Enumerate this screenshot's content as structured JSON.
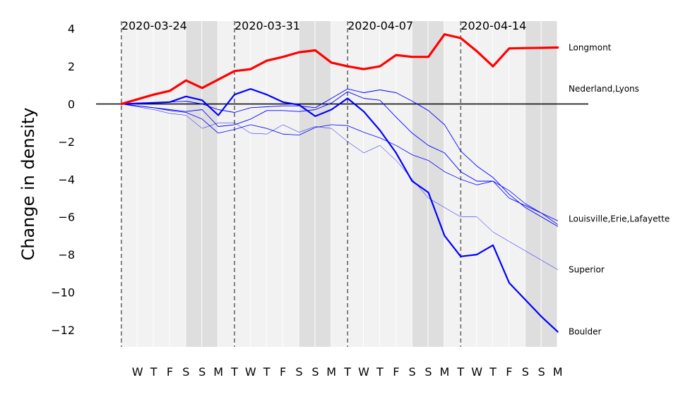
{
  "chart_data": {
    "type": "line",
    "title": "",
    "xlabel": "",
    "ylabel": "Change in density",
    "ylim": [
      -13,
      4.5
    ],
    "yticks": [
      4,
      2,
      0,
      -2,
      -4,
      -6,
      -8,
      -10,
      -12
    ],
    "ytick_labels": [
      "4",
      "2",
      "0",
      "−2",
      "−4",
      "−6",
      "−8",
      "−10",
      "−12"
    ],
    "xlim": [
      "2020-03-23T20:00",
      "2020-04-20T12:00"
    ],
    "day_labels": [
      "W",
      "T",
      "F",
      "S",
      "S",
      "M",
      "T",
      "W",
      "T",
      "F",
      "S",
      "S",
      "M",
      "T",
      "W",
      "T",
      "F",
      "S",
      "S",
      "M",
      "T",
      "W",
      "T",
      "F",
      "S",
      "S",
      "M"
    ],
    "first_day": "2020-03-25",
    "weekend_days": [
      "2020-03-28",
      "2020-03-29",
      "2020-04-04",
      "2020-04-05",
      "2020-04-11",
      "2020-04-12",
      "2020-04-18",
      "2020-04-19"
    ],
    "week_markers": [
      {
        "date": "2020-03-24",
        "label": "2020-03-24"
      },
      {
        "date": "2020-03-31",
        "label": "2020-03-31"
      },
      {
        "date": "2020-04-07",
        "label": "2020-04-07"
      },
      {
        "date": "2020-04-14",
        "label": "2020-04-14"
      }
    ],
    "zero_line": true,
    "x_dates": [
      "2020-03-24",
      "2020-03-25",
      "2020-03-26",
      "2020-03-27",
      "2020-03-28",
      "2020-03-29",
      "2020-03-30",
      "2020-03-31",
      "2020-04-01",
      "2020-04-02",
      "2020-04-03",
      "2020-04-04",
      "2020-04-05",
      "2020-04-06",
      "2020-04-07",
      "2020-04-08",
      "2020-04-09",
      "2020-04-10",
      "2020-04-11",
      "2020-04-12",
      "2020-04-13",
      "2020-04-14",
      "2020-04-15",
      "2020-04-16",
      "2020-04-17",
      "2020-04-18",
      "2020-04-19",
      "2020-04-20"
    ],
    "series": [
      {
        "name": "Longmont",
        "color": "#ff0000",
        "width": 3.2,
        "values": [
          0,
          0.25,
          0.5,
          0.7,
          1.25,
          0.85,
          1.3,
          1.75,
          1.85,
          2.3,
          2.5,
          2.75,
          2.85,
          2.2,
          2.0,
          1.85,
          2.0,
          2.6,
          2.5,
          2.5,
          3.7,
          3.5,
          2.8,
          2.0,
          2.95,
          2.97,
          2.98,
          3.0
        ]
      },
      {
        "name": "Nederland,Lyons",
        "color": "#0000ff",
        "width": 0.9,
        "values": [
          0,
          0.02,
          0.05,
          0.1,
          0.15,
          0.0,
          -0.3,
          -0.45,
          -0.2,
          -0.15,
          -0.1,
          -0.1,
          -0.2,
          0.3,
          0.8,
          0.6,
          0.75,
          0.6,
          0.15,
          -0.35,
          -1.1,
          -2.5,
          -3.3,
          -3.9,
          -4.8,
          -5.5,
          -6.0,
          -6.5
        ]
      },
      {
        "name": "Louisville,Erie,Lafayette",
        "color": "#0000ff",
        "width": 0.9,
        "values": [
          0,
          -0.1,
          -0.2,
          -0.3,
          -0.4,
          -0.3,
          -1.2,
          -1.1,
          -0.8,
          -0.35,
          -0.35,
          -0.4,
          -0.3,
          0.05,
          0.65,
          0.3,
          0.2,
          -0.7,
          -1.55,
          -2.2,
          -2.6,
          -3.6,
          -4.1,
          -4.1,
          -5.0,
          -5.4,
          -5.8,
          -6.2
        ]
      },
      {
        "name": "Superior",
        "color": "#0000ff",
        "width": 0.5,
        "values": [
          0,
          -0.15,
          -0.3,
          -0.5,
          -0.6,
          -1.3,
          -1.0,
          -1.0,
          -1.55,
          -1.6,
          -1.1,
          -1.5,
          -1.2,
          -1.3,
          -2.0,
          -2.6,
          -2.2,
          -3.0,
          -4.0,
          -5.0,
          -5.5,
          -6.0,
          -6.0,
          -6.8,
          -7.3,
          -7.8,
          -8.3,
          -8.8
        ]
      },
      {
        "name": "",
        "color": "#0000ff",
        "width": 0.8,
        "values": [
          0,
          -0.1,
          -0.2,
          -0.35,
          -0.45,
          -0.8,
          -1.55,
          -1.35,
          -1.1,
          -1.3,
          -1.6,
          -1.65,
          -1.25,
          -1.1,
          -1.15,
          -1.5,
          -1.8,
          -2.2,
          -2.7,
          -3.0,
          -3.6,
          -4.0,
          -4.3,
          -4.1,
          -4.6,
          -5.3,
          -5.8,
          -6.4
        ]
      },
      {
        "name": "Boulder",
        "color": "#0000ff",
        "width": 2.2,
        "values": [
          0,
          0.03,
          0.06,
          0.1,
          0.4,
          0.2,
          -0.6,
          0.5,
          0.8,
          0.5,
          0.1,
          -0.05,
          -0.65,
          -0.3,
          0.3,
          -0.4,
          -1.4,
          -2.6,
          -4.1,
          -4.7,
          -7.0,
          -8.1,
          -8.0,
          -7.5,
          -9.5,
          -10.4,
          -11.3,
          -12.1
        ]
      }
    ],
    "right_labels": [
      {
        "text": "Longmont",
        "y": 3.0
      },
      {
        "text": "Nederland,Lyons",
        "y": 0.8
      },
      {
        "text": "Louisville,Erie,Lafayette",
        "y": -6.1
      },
      {
        "text": "Superior",
        "y": -8.8
      },
      {
        "text": "Boulder",
        "y": -12.1
      }
    ],
    "band_colors": {
      "weekday": "#f2f2f2",
      "weekend": "#dedede"
    },
    "grid": false,
    "legend": "right-inline"
  }
}
